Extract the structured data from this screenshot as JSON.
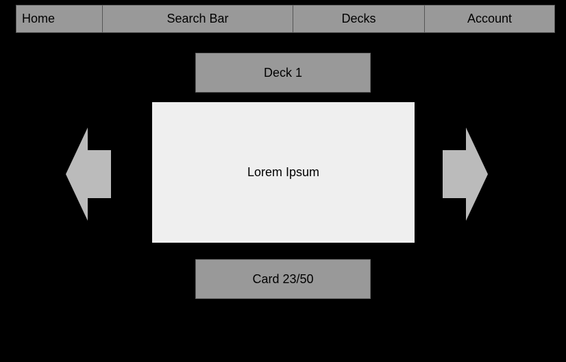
{
  "nav": {
    "home": "Home",
    "search": "Search Bar",
    "decks": "Decks",
    "account": "Account"
  },
  "deck": {
    "title": "Deck 1"
  },
  "card": {
    "text": "Lorem Ipsum",
    "counter": "Card 23/50"
  },
  "colors": {
    "background": "#000000",
    "panel": "#999999",
    "card": "#efefef",
    "arrow": "#bbbbbb"
  },
  "icons": {
    "previous": "arrow-left-icon",
    "next": "arrow-right-icon"
  }
}
